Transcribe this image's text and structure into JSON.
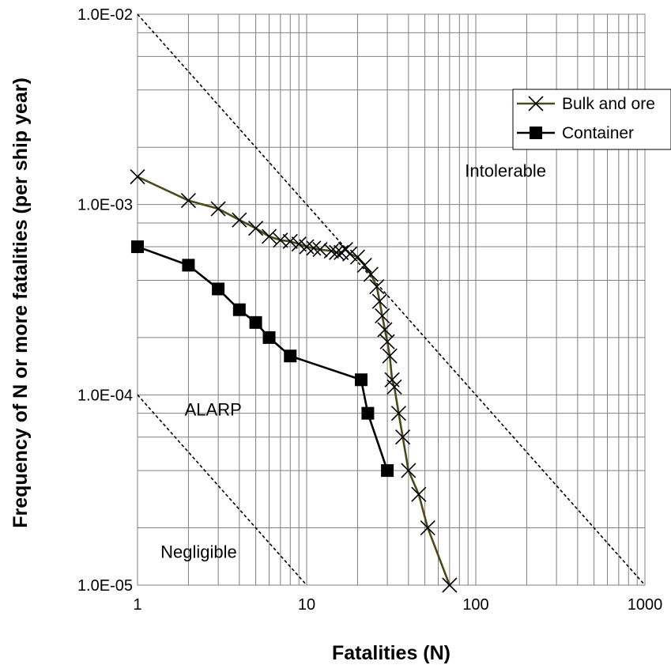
{
  "chart_data": {
    "type": "line",
    "title": "",
    "xlabel": "Fatalities (N)",
    "ylabel": "Frequency of N or more fatalities (per ship year)",
    "xscale": "log",
    "yscale": "log",
    "xlim": [
      1,
      1000
    ],
    "ylim": [
      1e-05,
      0.01
    ],
    "x_ticks": [
      "1",
      "10",
      "100",
      "1000"
    ],
    "y_ticks": [
      "1.0E-02",
      "1.0E-03",
      "1.0E-04",
      "1.0E-05"
    ],
    "grid": true,
    "legend_position": "top-right",
    "series": [
      {
        "name": "Bulk and ore",
        "color": "#4a4a1a",
        "marker": "x",
        "points": [
          [
            1,
            0.0014
          ],
          [
            2,
            0.00105
          ],
          [
            3,
            0.00095
          ],
          [
            4,
            0.00083
          ],
          [
            5,
            0.00075
          ],
          [
            6,
            0.00068
          ],
          [
            7,
            0.00065
          ],
          [
            8,
            0.00064
          ],
          [
            9,
            0.00062
          ],
          [
            10,
            0.0006
          ],
          [
            11,
            0.00059
          ],
          [
            12,
            0.00058
          ],
          [
            14,
            0.00057
          ],
          [
            15,
            0.00056
          ],
          [
            16,
            0.00056
          ],
          [
            17,
            0.00058
          ],
          [
            18,
            0.00055
          ],
          [
            20,
            0.00053
          ],
          [
            22,
            0.00048
          ],
          [
            24,
            0.00043
          ],
          [
            26,
            0.00037
          ],
          [
            27,
            0.00031
          ],
          [
            28,
            0.00026
          ],
          [
            29,
            0.00022
          ],
          [
            30,
            0.00019
          ],
          [
            31,
            0.00016
          ],
          [
            32,
            0.00012
          ],
          [
            33,
            0.00011
          ],
          [
            35,
            8e-05
          ],
          [
            37,
            6e-05
          ],
          [
            40,
            4e-05
          ],
          [
            46,
            3e-05
          ],
          [
            52,
            2e-05
          ],
          [
            70,
            1e-05
          ]
        ]
      },
      {
        "name": "Container",
        "color": "#000000",
        "marker": "square",
        "points": [
          [
            1,
            0.0006
          ],
          [
            2,
            0.00048
          ],
          [
            3,
            0.00036
          ],
          [
            4,
            0.00028
          ],
          [
            5,
            0.00024
          ],
          [
            6,
            0.0002
          ],
          [
            8,
            0.00016
          ],
          [
            21,
            0.00012
          ],
          [
            23,
            8e-05
          ],
          [
            30,
            4e-05
          ]
        ]
      }
    ],
    "reference_lines": [
      {
        "from": [
          1,
          0.01
        ],
        "to": [
          1000,
          1e-05
        ],
        "style": "dashed",
        "color": "#000000"
      },
      {
        "from": [
          1,
          0.0001
        ],
        "to": [
          100,
          1e-06
        ],
        "style": "dashed",
        "color": "#000000"
      }
    ],
    "annotations": [
      {
        "text": "Intolerable",
        "x": 150,
        "y": 0.0014
      },
      {
        "text": "ALARP",
        "x": 2.8,
        "y": 7.8e-05
      },
      {
        "text": "Negligible",
        "x": 2.3,
        "y": 1.39e-05
      }
    ]
  }
}
